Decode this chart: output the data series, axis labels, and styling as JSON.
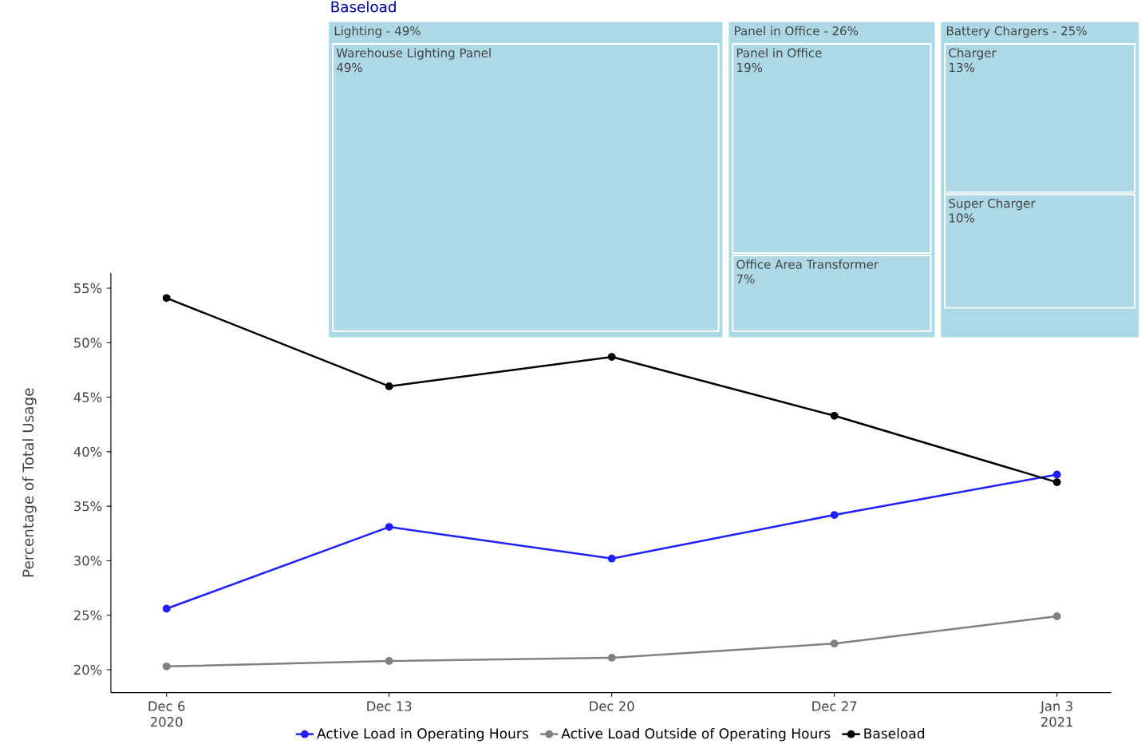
{
  "chart_data": [
    {
      "type": "line",
      "ylabel": "Percentage of Total Usage",
      "legend": "bottom",
      "marker": "circle",
      "x": [
        "2020-12-06",
        "2020-12-13",
        "2020-12-20",
        "2020-12-27",
        "2021-01-03"
      ],
      "series": [
        {
          "name": "Active Load in Operating Hours",
          "color": "#1f1fff",
          "values": [
            25.6,
            33.1,
            30.2,
            34.2,
            37.9
          ]
        },
        {
          "name": "Active Load Outside of Operating Hours",
          "color": "#808080",
          "values": [
            20.3,
            20.8,
            21.1,
            22.4,
            24.9
          ]
        },
        {
          "name": "Baseload",
          "color": "#000000",
          "values": [
            54.1,
            46.0,
            48.7,
            43.3,
            37.2
          ]
        }
      ],
      "xlim": [
        "2020-12-04T06:00",
        "2021-01-04T17:00"
      ],
      "ylim": [
        17.9,
        56.4
      ],
      "xticks": [
        {
          "value": "2020-12-06",
          "label": "Dec 6 2020"
        },
        {
          "value": "2020-12-13",
          "label": "Dec 13"
        },
        {
          "value": "2020-12-20",
          "label": "Dec 20"
        },
        {
          "value": "2020-12-27",
          "label": "Dec 27"
        },
        {
          "value": "2021-01-03",
          "label": "Jan 3 2021"
        }
      ],
      "yticks": [
        {
          "value": 20,
          "label": "20%"
        },
        {
          "value": 25,
          "label": "25%"
        },
        {
          "value": 30,
          "label": "30%"
        },
        {
          "value": 35,
          "label": "35%"
        },
        {
          "value": 40,
          "label": "40%"
        },
        {
          "value": 45,
          "label": "45%"
        },
        {
          "value": 50,
          "label": "50%"
        },
        {
          "value": 55,
          "label": "55%"
        }
      ]
    },
    {
      "type": "other",
      "title": "Baseload",
      "color": "#add8e6",
      "categories": [
        "Lighting -",
        "Panel in Office -",
        "Battery Chargers -"
      ],
      "values": [
        49,
        26,
        25
      ],
      "value_labels": [
        "49%",
        "26%",
        "25%"
      ],
      "series": [
        {
          "name": "Warehouse Lighting Panel",
          "values": [
            49,
            null,
            null
          ],
          "value_labels": [
            "49%",
            null,
            null
          ]
        },
        {
          "name": "Panel in Office",
          "values": [
            null,
            19,
            null
          ],
          "value_labels": [
            null,
            "19%",
            null
          ]
        },
        {
          "name": "Office Area Transformer",
          "values": [
            null,
            7,
            null
          ],
          "value_labels": [
            null,
            "7%",
            null
          ]
        },
        {
          "name": "Charger",
          "values": [
            null,
            null,
            13
          ],
          "value_labels": [
            null,
            null,
            "13%"
          ]
        },
        {
          "name": "Super Charger",
          "values": [
            null,
            null,
            10
          ],
          "value_labels": [
            null,
            null,
            "10%"
          ]
        }
      ]
    }
  ]
}
